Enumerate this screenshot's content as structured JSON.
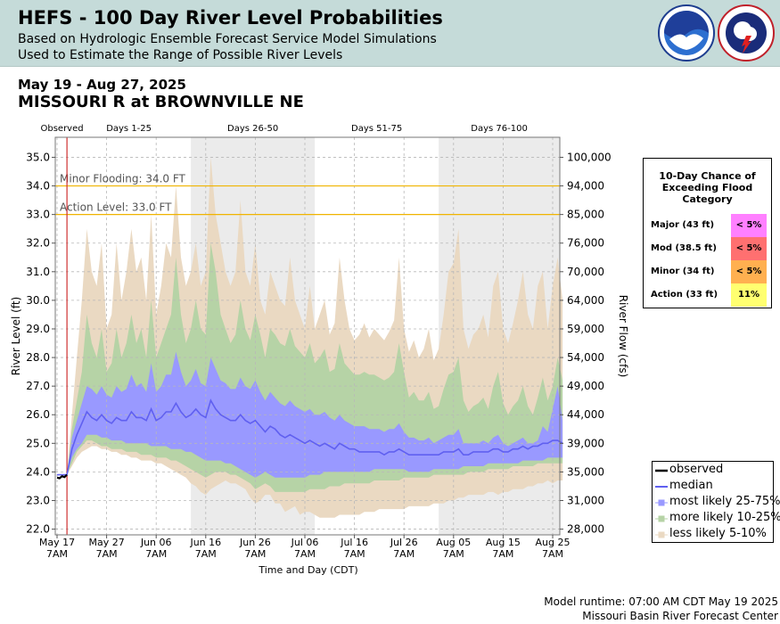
{
  "header": {
    "title": "HEFS - 100 Day River Level Probabilities",
    "subtitle1": "Based on Hydrologic Ensemble Forecast Service Model Simulations",
    "subtitle2": "Used to Estimate the Range of Possible River Levels",
    "logos": [
      "noaa-logo",
      "nws-logo"
    ]
  },
  "date_range": "May 19 - Aug 27, 2025",
  "station": "MISSOURI R at BROWNVILLE NE",
  "chart_data": {
    "type": "area",
    "xlabel": "Time and Day (CDT)",
    "ylabel": "River Level (ft)",
    "ylabel_right": "River Flow (cfs)",
    "x_start": "May 17 7AM",
    "x_end": "Aug 27 7AM",
    "ylim": [
      21.8,
      35.7
    ],
    "grid": true,
    "y_ticks": [
      "22.0",
      "23.0",
      "24.0",
      "25.0",
      "26.0",
      "27.0",
      "28.0",
      "29.0",
      "30.0",
      "31.0",
      "32.0",
      "33.0",
      "34.0",
      "35.0"
    ],
    "right_ticks": [
      {
        "stage": 22.0,
        "label": "28,000"
      },
      {
        "stage": 23.0,
        "label": "31,000"
      },
      {
        "stage": 24.0,
        "label": "35,000"
      },
      {
        "stage": 25.0,
        "label": "39,000"
      },
      {
        "stage": 26.0,
        "label": "44,000"
      },
      {
        "stage": 27.0,
        "label": "49,000"
      },
      {
        "stage": 28.0,
        "label": "54,000"
      },
      {
        "stage": 29.0,
        "label": "59,000"
      },
      {
        "stage": 30.0,
        "label": "64,000"
      },
      {
        "stage": 31.0,
        "label": "70,000"
      },
      {
        "stage": 32.0,
        "label": "76,000"
      },
      {
        "stage": 33.0,
        "label": "85,000"
      },
      {
        "stage": 34.0,
        "label": "94,000"
      },
      {
        "stage": 35.0,
        "label": "100,000"
      }
    ],
    "x_ticks": [
      {
        "day": 0,
        "label": "May 17",
        "time": "7AM"
      },
      {
        "day": 10,
        "label": "May 27",
        "time": "7AM"
      },
      {
        "day": 20,
        "label": "Jun 06",
        "time": "7AM"
      },
      {
        "day": 30,
        "label": "Jun 16",
        "time": "7AM"
      },
      {
        "day": 40,
        "label": "Jun 26",
        "time": "7AM"
      },
      {
        "day": 50,
        "label": "Jul 06",
        "time": "7AM"
      },
      {
        "day": 60,
        "label": "Jul 16",
        "time": "7AM"
      },
      {
        "day": 70,
        "label": "Jul 26",
        "time": "7AM"
      },
      {
        "day": 80,
        "label": "Aug 05",
        "time": "7AM"
      },
      {
        "day": 90,
        "label": "Aug 15",
        "time": "7AM"
      },
      {
        "day": 100,
        "label": "Aug 25",
        "time": "7AM"
      }
    ],
    "periods": [
      {
        "label": "Observed",
        "start": 0,
        "end": 2,
        "shaded": false
      },
      {
        "label": "Days 1-25",
        "start": 2,
        "end": 27,
        "shaded": false
      },
      {
        "label": "Days 26-50",
        "start": 27,
        "end": 52,
        "shaded": true
      },
      {
        "label": "Days 51-75",
        "start": 52,
        "end": 77,
        "shaded": false
      },
      {
        "label": "Days 76-100",
        "start": 77,
        "end": 102,
        "shaded": true
      }
    ],
    "forecast_start_day": 2,
    "thresholds": [
      {
        "name": "Minor Flooding: 34.0 FT",
        "stage": 34.0,
        "color": "#f0b400"
      },
      {
        "name": "Action Level: 33.0 FT",
        "stage": 33.0,
        "color": "#f0b400"
      }
    ],
    "x": [
      0,
      1,
      2,
      3,
      4,
      5,
      6,
      7,
      8,
      9,
      10,
      11,
      12,
      13,
      14,
      15,
      16,
      17,
      18,
      19,
      20,
      21,
      22,
      23,
      24,
      25,
      26,
      27,
      28,
      29,
      30,
      31,
      32,
      33,
      34,
      35,
      36,
      37,
      38,
      39,
      40,
      41,
      42,
      43,
      44,
      45,
      46,
      47,
      48,
      49,
      50,
      51,
      52,
      53,
      54,
      55,
      56,
      57,
      58,
      59,
      60,
      61,
      62,
      63,
      64,
      65,
      66,
      67,
      68,
      69,
      70,
      71,
      72,
      73,
      74,
      75,
      76,
      77,
      78,
      79,
      80,
      81,
      82,
      83,
      84,
      85,
      86,
      87,
      88,
      89,
      90,
      91,
      92,
      93,
      94,
      95,
      96,
      97,
      98,
      99,
      100,
      101,
      102
    ],
    "observed": {
      "x": [
        0,
        0.5,
        1,
        1.5,
        2
      ],
      "y": [
        23.8,
        23.78,
        23.85,
        23.82,
        23.9
      ]
    },
    "series": [
      {
        "name": "less likely 5-10%",
        "color": "#ead9c2",
        "kind": "band",
        "low": [
          23.9,
          23.9,
          23.9,
          24.2,
          24.5,
          24.7,
          24.8,
          24.9,
          24.9,
          24.8,
          24.8,
          24.7,
          24.7,
          24.6,
          24.6,
          24.5,
          24.5,
          24.4,
          24.4,
          24.4,
          24.3,
          24.3,
          24.2,
          24.1,
          24.0,
          23.9,
          23.8,
          23.6,
          23.5,
          23.3,
          23.2,
          23.4,
          23.5,
          23.6,
          23.7,
          23.6,
          23.6,
          23.5,
          23.4,
          23.1,
          22.9,
          23.0,
          23.2,
          23.2,
          22.9,
          22.9,
          22.6,
          22.7,
          22.8,
          22.5,
          22.6,
          22.6,
          22.5,
          22.4,
          22.4,
          22.4,
          22.4,
          22.5,
          22.5,
          22.5,
          22.5,
          22.5,
          22.6,
          22.6,
          22.6,
          22.7,
          22.7,
          22.7,
          22.7,
          22.7,
          22.7,
          22.8,
          22.8,
          22.8,
          22.8,
          22.8,
          22.9,
          22.9,
          22.9,
          23.0,
          23.0,
          23.1,
          23.1,
          23.2,
          23.2,
          23.2,
          23.2,
          23.3,
          23.3,
          23.2,
          23.3,
          23.3,
          23.4,
          23.4,
          23.4,
          23.5,
          23.5,
          23.6,
          23.6,
          23.7,
          23.6,
          23.7,
          23.7
        ],
        "high": [
          23.9,
          23.9,
          23.9,
          26.0,
          28.0,
          30.0,
          32.5,
          31.0,
          30.5,
          32.0,
          29.0,
          29.5,
          32.0,
          30.0,
          31.0,
          32.5,
          31.0,
          31.5,
          30.0,
          33.0,
          29.5,
          30.5,
          32.0,
          31.5,
          34.0,
          31.5,
          30.5,
          31.0,
          32.0,
          30.5,
          31.0,
          35.0,
          33.0,
          32.0,
          31.0,
          30.5,
          31.0,
          33.5,
          31.0,
          30.5,
          32.0,
          30.0,
          29.5,
          31.0,
          30.5,
          30.0,
          29.8,
          31.5,
          30.0,
          29.5,
          29.0,
          30.5,
          29.0,
          29.5,
          30.0,
          28.8,
          29.2,
          31.5,
          30.0,
          29.0,
          28.6,
          28.8,
          29.2,
          28.7,
          29.0,
          28.8,
          28.6,
          28.9,
          29.3,
          31.5,
          29.0,
          28.2,
          28.6,
          28.0,
          28.3,
          29.0,
          27.9,
          28.3,
          29.5,
          31.0,
          31.3,
          32.5,
          29.0,
          28.3,
          28.8,
          29.0,
          29.5,
          28.7,
          30.5,
          31.0,
          29.0,
          28.5,
          29.2,
          30.0,
          31.0,
          29.5,
          29.0,
          30.5,
          31.0,
          29.0,
          30.5,
          31.5,
          30.0
        ]
      },
      {
        "name": "more likely 10-25%",
        "color": "#b6d3a6",
        "kind": "band",
        "low": [
          23.9,
          23.9,
          23.9,
          24.3,
          24.7,
          24.9,
          25.1,
          25.1,
          25.0,
          24.9,
          24.9,
          24.8,
          24.8,
          24.8,
          24.7,
          24.7,
          24.7,
          24.6,
          24.6,
          24.6,
          24.5,
          24.5,
          24.5,
          24.4,
          24.4,
          24.3,
          24.2,
          24.1,
          24.0,
          23.9,
          23.8,
          23.9,
          24.0,
          24.0,
          24.0,
          23.9,
          23.9,
          23.8,
          23.7,
          23.6,
          23.4,
          23.5,
          23.6,
          23.5,
          23.3,
          23.3,
          23.3,
          23.3,
          23.3,
          23.3,
          23.3,
          23.4,
          23.4,
          23.4,
          23.4,
          23.5,
          23.5,
          23.5,
          23.6,
          23.6,
          23.6,
          23.6,
          23.6,
          23.6,
          23.7,
          23.7,
          23.7,
          23.7,
          23.7,
          23.7,
          23.8,
          23.8,
          23.8,
          23.8,
          23.8,
          23.8,
          23.9,
          23.9,
          23.9,
          23.9,
          23.9,
          23.9,
          23.9,
          24.0,
          24.0,
          24.0,
          24.0,
          24.1,
          24.1,
          24.1,
          24.1,
          24.1,
          24.2,
          24.2,
          24.2,
          24.2,
          24.2,
          24.3,
          24.3,
          24.3,
          24.3,
          24.3,
          24.3
        ],
        "high": [
          23.9,
          23.9,
          23.9,
          25.5,
          26.5,
          27.5,
          29.5,
          28.5,
          28.0,
          29.0,
          27.5,
          27.8,
          29.0,
          28.0,
          28.5,
          29.5,
          28.5,
          29.0,
          28.0,
          30.0,
          28.0,
          28.5,
          29.0,
          29.5,
          31.5,
          29.5,
          28.5,
          29.0,
          30.0,
          29.0,
          28.8,
          32.0,
          31.0,
          29.5,
          29.0,
          28.5,
          28.8,
          30.0,
          29.0,
          28.6,
          29.5,
          28.8,
          28.0,
          29.0,
          28.8,
          28.5,
          28.4,
          29.0,
          28.4,
          28.2,
          28.0,
          28.5,
          27.8,
          28.0,
          28.3,
          27.5,
          27.6,
          28.5,
          27.8,
          27.6,
          27.4,
          27.4,
          27.5,
          27.4,
          27.4,
          27.3,
          27.2,
          27.3,
          27.5,
          28.5,
          27.5,
          26.6,
          26.8,
          26.5,
          26.5,
          26.8,
          26.2,
          26.3,
          26.9,
          27.4,
          27.5,
          28.0,
          26.5,
          26.1,
          26.3,
          26.4,
          26.6,
          26.2,
          27.0,
          27.5,
          26.4,
          26.0,
          26.3,
          26.5,
          27.0,
          26.3,
          26.0,
          26.6,
          27.3,
          26.5,
          27.0,
          28.0,
          27.2
        ]
      },
      {
        "name": "most likely 25-75%",
        "color": "#9999ff",
        "kind": "band",
        "low": [
          23.9,
          23.9,
          23.9,
          24.5,
          24.8,
          25.0,
          25.3,
          25.3,
          25.3,
          25.2,
          25.2,
          25.1,
          25.1,
          25.1,
          25.0,
          25.0,
          25.0,
          25.0,
          25.0,
          24.9,
          24.9,
          24.9,
          24.9,
          24.8,
          24.8,
          24.8,
          24.7,
          24.7,
          24.6,
          24.5,
          24.4,
          24.4,
          24.4,
          24.4,
          24.3,
          24.3,
          24.2,
          24.1,
          24.0,
          23.9,
          23.8,
          23.9,
          24.0,
          23.9,
          23.8,
          23.8,
          23.8,
          23.8,
          23.8,
          23.8,
          23.8,
          23.9,
          23.9,
          23.9,
          24.0,
          24.0,
          24.0,
          24.0,
          24.0,
          24.0,
          24.0,
          24.0,
          24.0,
          24.0,
          24.1,
          24.1,
          24.1,
          24.1,
          24.1,
          24.1,
          24.1,
          24.0,
          24.0,
          24.0,
          24.0,
          24.0,
          24.1,
          24.1,
          24.1,
          24.1,
          24.1,
          24.1,
          24.2,
          24.2,
          24.2,
          24.2,
          24.2,
          24.3,
          24.3,
          24.3,
          24.3,
          24.3,
          24.3,
          24.3,
          24.4,
          24.4,
          24.4,
          24.4,
          24.4,
          24.5,
          24.5,
          24.5,
          24.5
        ],
        "high": [
          23.9,
          23.9,
          23.9,
          25.2,
          25.8,
          26.4,
          27.0,
          26.9,
          26.7,
          27.0,
          26.7,
          26.6,
          27.0,
          26.8,
          26.9,
          27.4,
          27.0,
          27.1,
          26.8,
          27.8,
          26.8,
          27.0,
          27.4,
          27.4,
          28.2,
          27.5,
          27.0,
          27.2,
          27.6,
          27.1,
          27.0,
          28.0,
          27.6,
          27.2,
          27.1,
          26.9,
          26.9,
          27.3,
          27.0,
          26.9,
          27.2,
          26.8,
          26.5,
          26.8,
          26.6,
          26.4,
          26.3,
          26.5,
          26.3,
          26.2,
          26.1,
          26.2,
          26.0,
          26.0,
          26.1,
          25.9,
          25.8,
          26.0,
          25.8,
          25.7,
          25.6,
          25.6,
          25.6,
          25.5,
          25.5,
          25.5,
          25.4,
          25.5,
          25.5,
          25.7,
          25.4,
          25.2,
          25.2,
          25.1,
          25.1,
          25.2,
          25.0,
          25.1,
          25.2,
          25.3,
          25.3,
          25.5,
          25.0,
          25.0,
          25.0,
          25.0,
          25.1,
          25.0,
          25.2,
          25.3,
          25.0,
          24.9,
          25.0,
          25.1,
          25.2,
          25.0,
          25.0,
          25.1,
          25.6,
          25.4,
          26.2,
          27.0,
          25.8
        ]
      },
      {
        "name": "median",
        "color": "#6060f0",
        "kind": "line",
        "values": [
          23.9,
          23.9,
          23.9,
          24.8,
          25.3,
          25.7,
          26.1,
          25.9,
          25.8,
          26.0,
          25.8,
          25.7,
          25.9,
          25.8,
          25.8,
          26.1,
          25.9,
          25.9,
          25.8,
          26.2,
          25.8,
          25.9,
          26.1,
          26.1,
          26.4,
          26.1,
          25.9,
          26.0,
          26.2,
          26.0,
          25.9,
          26.5,
          26.2,
          26.0,
          25.9,
          25.8,
          25.8,
          26.0,
          25.8,
          25.7,
          25.8,
          25.6,
          25.4,
          25.6,
          25.5,
          25.3,
          25.2,
          25.3,
          25.2,
          25.1,
          25.0,
          25.1,
          25.0,
          24.9,
          25.0,
          24.9,
          24.8,
          25.0,
          24.9,
          24.8,
          24.8,
          24.7,
          24.7,
          24.7,
          24.7,
          24.7,
          24.6,
          24.7,
          24.7,
          24.8,
          24.7,
          24.6,
          24.6,
          24.6,
          24.6,
          24.6,
          24.6,
          24.6,
          24.7,
          24.7,
          24.7,
          24.8,
          24.6,
          24.6,
          24.7,
          24.7,
          24.7,
          24.7,
          24.8,
          24.8,
          24.7,
          24.7,
          24.8,
          24.8,
          24.9,
          24.8,
          24.9,
          24.9,
          25.0,
          25.0,
          25.1,
          25.1,
          25.0
        ]
      }
    ]
  },
  "prob_table": {
    "title": "10-Day Chance of Exceeding Flood Category",
    "rows": [
      {
        "label": "Major (43 ft)",
        "value": "< 5%",
        "color": "#ff80ff"
      },
      {
        "label": "Mod (38.5 ft)",
        "value": "< 5%",
        "color": "#ff7070"
      },
      {
        "label": "Minor (34 ft)",
        "value": "< 5%",
        "color": "#ffb050"
      },
      {
        "label": "Action (33 ft)",
        "value": "11%",
        "color": "#ffff70"
      }
    ]
  },
  "legend": {
    "items": [
      {
        "label": "observed",
        "color": "#000000",
        "kind": "line"
      },
      {
        "label": "median",
        "color": "#6060f0",
        "kind": "line"
      },
      {
        "label": "most likely 25-75%",
        "color": "#9999ff",
        "kind": "box"
      },
      {
        "label": "more likely 10-25%",
        "color": "#b6d3a6",
        "kind": "box"
      },
      {
        "label": "less likely 5-10%",
        "color": "#ead9c2",
        "kind": "box"
      }
    ]
  },
  "footer": {
    "runtime": "Model runtime: 07:00 AM CDT May 19 2025",
    "center": "Missouri Basin River Forecast Center"
  }
}
